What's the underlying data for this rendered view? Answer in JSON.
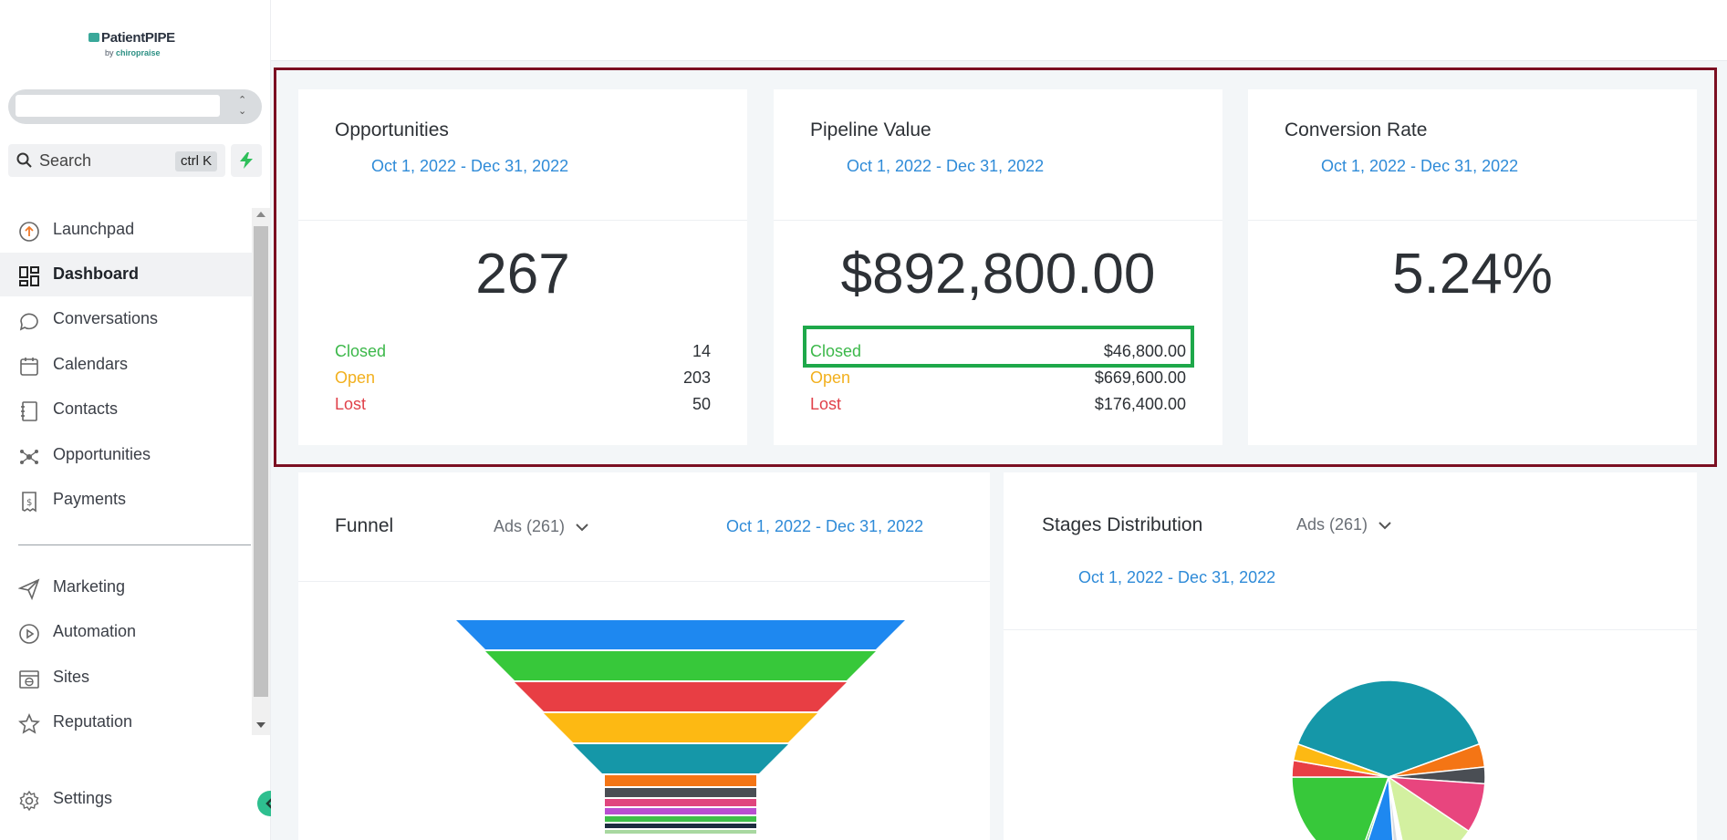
{
  "brand": {
    "name": "PatientPIPE",
    "sub_prefix": "by",
    "sub_name": "chiropraise"
  },
  "search": {
    "label": "Search",
    "shortcut": "ctrl K"
  },
  "sidebar": {
    "items": [
      {
        "label": "Launchpad",
        "icon": "launchpad-icon"
      },
      {
        "label": "Dashboard",
        "icon": "dashboard-grid-icon",
        "active": true
      },
      {
        "label": "Conversations",
        "icon": "chat-bubble-icon"
      },
      {
        "label": "Calendars",
        "icon": "calendar-icon"
      },
      {
        "label": "Contacts",
        "icon": "contacts-book-icon"
      },
      {
        "label": "Opportunities",
        "icon": "opportunities-network-icon"
      },
      {
        "label": "Payments",
        "icon": "payments-receipt-icon"
      },
      {
        "label": "Marketing",
        "icon": "send-plane-icon"
      },
      {
        "label": "Automation",
        "icon": "play-circle-icon"
      },
      {
        "label": "Sites",
        "icon": "globe-window-icon"
      },
      {
        "label": "Reputation",
        "icon": "star-icon"
      }
    ],
    "settings_label": "Settings"
  },
  "cards": {
    "opportunities": {
      "title": "Opportunities",
      "date": "Oct 1, 2022 - Dec 31, 2022",
      "value": "267",
      "closed_label": "Closed",
      "closed_value": "14",
      "open_label": "Open",
      "open_value": "203",
      "lost_label": "Lost",
      "lost_value": "50"
    },
    "pipeline": {
      "title": "Pipeline Value",
      "date": "Oct 1, 2022 - Dec 31, 2022",
      "value": "$892,800.00",
      "closed_label": "Closed",
      "closed_value": "$46,800.00",
      "open_label": "Open",
      "open_value": "$669,600.00",
      "lost_label": "Lost",
      "lost_value": "$176,400.00"
    },
    "conversion": {
      "title": "Conversion Rate",
      "date": "Oct 1, 2022 - Dec 31, 2022",
      "value": "5.24%"
    },
    "funnel": {
      "title": "Funnel",
      "pipeline": "Ads (261)",
      "date": "Oct 1, 2022 - Dec 31, 2022"
    },
    "stages": {
      "title": "Stages Distribution",
      "pipeline": "Ads (261)",
      "date": "Oct 1, 2022 - Dec 31, 2022"
    }
  },
  "colors": {
    "accent_blue": "#2f8bd8",
    "closed": "#3cb84a",
    "open": "#f2b01e",
    "lost": "#e0414a",
    "highlight_red": "#7b0f22",
    "highlight_green": "#1ea84a"
  },
  "funnel_colors": [
    "#1e88f0",
    "#37c83a",
    "#e83e44",
    "#fdb913",
    "#1597a8",
    "#f47515",
    "#4a4e54",
    "#e0457e",
    "#b94fd1",
    "#3fbf4a",
    "#1d2d40",
    "#a8d8a0"
  ],
  "pie_colors": [
    "#1597a8",
    "#f47515",
    "#4a4e54",
    "#e8457e",
    "#d3f0a0",
    "#ffffff",
    "#d8dde3",
    "#1e88f0",
    "#37c83a",
    "#37c83a",
    "#e83e44",
    "#fdb913"
  ]
}
